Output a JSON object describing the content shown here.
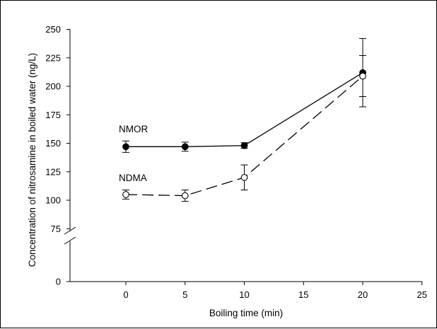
{
  "chart_data": {
    "type": "line",
    "xlabel": "Boiling time (min)",
    "ylabel": "Concentration of nitrosamine in boiled water (ng/L)",
    "xlim": [
      -4,
      25
    ],
    "x_ticks": [
      0,
      5,
      10,
      15,
      20,
      25
    ],
    "y_ticks": [
      0,
      75,
      100,
      125,
      150,
      175,
      200,
      225,
      250
    ],
    "y_axis_break": true,
    "grid": false,
    "series": [
      {
        "name": "NMOR",
        "line_style": "solid",
        "marker": "filled-circle",
        "color": "#000000",
        "x": [
          0,
          5,
          10,
          20
        ],
        "y": [
          147,
          147,
          148,
          212
        ],
        "err": [
          5,
          4,
          2.5,
          30
        ]
      },
      {
        "name": "NDMA",
        "line_style": "dashed",
        "marker": "open-circle",
        "color": "#000000",
        "x": [
          0,
          5,
          10,
          20
        ],
        "y": [
          105,
          104,
          120,
          209
        ],
        "err": [
          4,
          5,
          11,
          18
        ]
      }
    ]
  }
}
